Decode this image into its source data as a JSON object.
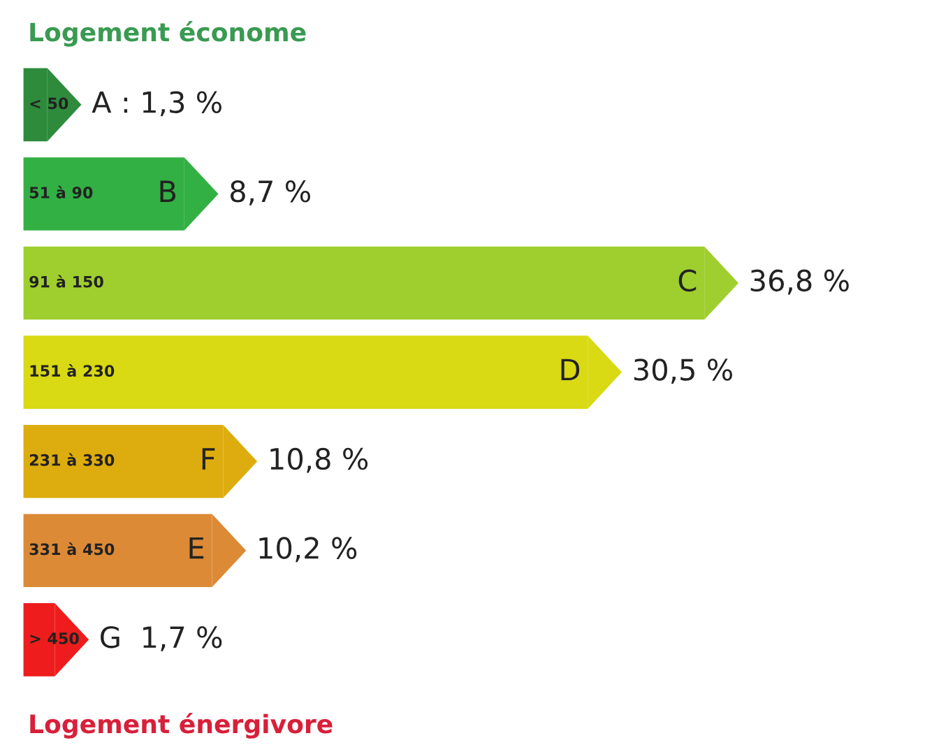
{
  "chart_data": {
    "type": "bar",
    "orientation": "horizontal",
    "title": "Logement économe",
    "categories": [
      "< 50",
      "51 à 90",
      "91 à 150",
      "151 à 230",
      "231 à 330",
      "331 à 450",
      "> 450"
    ],
    "values": [
      1.3,
      8.7,
      36.8,
      30.5,
      10.8,
      10.2,
      1.7
    ],
    "colors": [
      "#2e8b3c",
      "#33b044",
      "#9fcf2e",
      "#d9d914",
      "#ddac0e",
      "#dc8a36",
      "#ee1c1c"
    ],
    "value_labels": [
      "A : 1,3 %",
      "8,7 %",
      "36,8 %",
      "30,5 %",
      "10,8 %",
      "10,2 %",
      "G  1,7 %"
    ],
    "annotations": [
      {
        "text": "B",
        "y": "51 à 90"
      },
      {
        "text": "C",
        "y": "91 à 150"
      },
      {
        "text": "D",
        "y": "151 à 230"
      },
      {
        "text": "F",
        "y": "231 à 330"
      },
      {
        "text": "E",
        "y": "331 à 450"
      },
      "Logement énergivore"
    ]
  }
}
